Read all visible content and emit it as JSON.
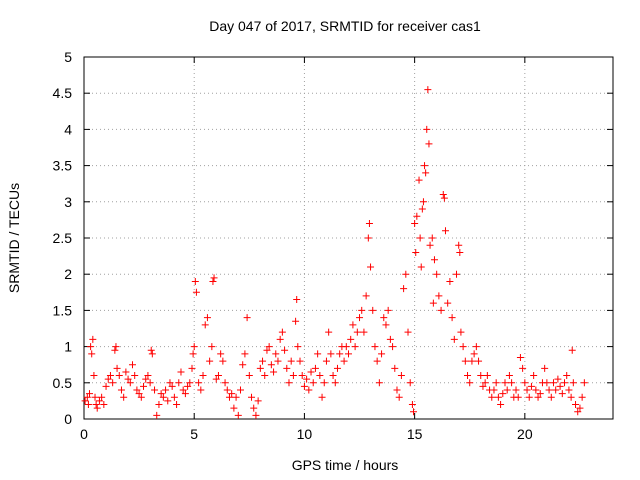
{
  "chart_data": {
    "type": "scatter",
    "title": "Day 047 of 2017, SRMTID for receiver cas1",
    "xlabel": "GPS time / hours",
    "ylabel": "SRMTID / TECUs",
    "xlim": [
      0,
      24
    ],
    "ylim": [
      0,
      5
    ],
    "grid": true,
    "marker": "+",
    "color": "#ff0000",
    "xticks": [
      0,
      5,
      10,
      15,
      20
    ],
    "xtick_labels": [
      "0",
      "5",
      "10",
      "15",
      "20"
    ],
    "yticks": [
      0,
      0.5,
      1,
      1.5,
      2,
      2.5,
      3,
      3.5,
      4,
      4.5,
      5
    ],
    "ytick_labels": [
      "0",
      "0.5",
      "1",
      "1.5",
      "2",
      "2.5",
      "3",
      "3.5",
      "4",
      "4.5",
      "5"
    ],
    "series": [
      {
        "name": "cas1",
        "points": [
          [
            0.05,
            0.25
          ],
          [
            0.15,
            0.3
          ],
          [
            0.2,
            0.2
          ],
          [
            0.25,
            0.35
          ],
          [
            0.3,
            1.0
          ],
          [
            0.35,
            0.9
          ],
          [
            0.4,
            1.1
          ],
          [
            0.45,
            0.6
          ],
          [
            0.5,
            0.3
          ],
          [
            0.55,
            0.2
          ],
          [
            0.6,
            0.15
          ],
          [
            0.7,
            0.25
          ],
          [
            0.8,
            0.3
          ],
          [
            0.9,
            0.2
          ],
          [
            1.0,
            0.45
          ],
          [
            1.1,
            0.55
          ],
          [
            1.2,
            0.6
          ],
          [
            1.3,
            0.5
          ],
          [
            1.4,
            0.95
          ],
          [
            1.45,
            1.0
          ],
          [
            1.5,
            0.7
          ],
          [
            1.6,
            0.6
          ],
          [
            1.7,
            0.4
          ],
          [
            1.8,
            0.3
          ],
          [
            1.9,
            0.65
          ],
          [
            2.0,
            0.55
          ],
          [
            2.1,
            0.5
          ],
          [
            2.2,
            0.75
          ],
          [
            2.3,
            0.6
          ],
          [
            2.4,
            0.4
          ],
          [
            2.5,
            0.35
          ],
          [
            2.6,
            0.3
          ],
          [
            2.7,
            0.45
          ],
          [
            2.8,
            0.55
          ],
          [
            2.9,
            0.6
          ],
          [
            3.0,
            0.5
          ],
          [
            3.05,
            0.95
          ],
          [
            3.1,
            0.9
          ],
          [
            3.2,
            0.4
          ],
          [
            3.3,
            0.05
          ],
          [
            3.4,
            0.2
          ],
          [
            3.5,
            0.35
          ],
          [
            3.6,
            0.3
          ],
          [
            3.7,
            0.4
          ],
          [
            3.8,
            0.25
          ],
          [
            3.9,
            0.5
          ],
          [
            4.0,
            0.45
          ],
          [
            4.1,
            0.3
          ],
          [
            4.2,
            0.2
          ],
          [
            4.3,
            0.5
          ],
          [
            4.4,
            0.65
          ],
          [
            4.5,
            0.4
          ],
          [
            4.6,
            0.35
          ],
          [
            4.7,
            0.45
          ],
          [
            4.8,
            0.5
          ],
          [
            4.9,
            0.7
          ],
          [
            4.95,
            0.9
          ],
          [
            5.0,
            1.0
          ],
          [
            5.05,
            1.9
          ],
          [
            5.1,
            1.75
          ],
          [
            5.2,
            0.5
          ],
          [
            5.3,
            0.4
          ],
          [
            5.4,
            0.6
          ],
          [
            5.5,
            1.3
          ],
          [
            5.6,
            1.4
          ],
          [
            5.7,
            0.8
          ],
          [
            5.8,
            1.0
          ],
          [
            5.85,
            1.9
          ],
          [
            5.9,
            1.95
          ],
          [
            6.0,
            0.55
          ],
          [
            6.1,
            0.6
          ],
          [
            6.2,
            0.9
          ],
          [
            6.3,
            0.8
          ],
          [
            6.4,
            0.5
          ],
          [
            6.5,
            0.4
          ],
          [
            6.6,
            0.3
          ],
          [
            6.7,
            0.35
          ],
          [
            6.8,
            0.15
          ],
          [
            6.9,
            0.3
          ],
          [
            7.0,
            0.05
          ],
          [
            7.1,
            0.4
          ],
          [
            7.2,
            0.75
          ],
          [
            7.3,
            0.9
          ],
          [
            7.4,
            1.4
          ],
          [
            7.5,
            0.6
          ],
          [
            7.6,
            0.3
          ],
          [
            7.7,
            0.15
          ],
          [
            7.8,
            0.05
          ],
          [
            7.9,
            0.25
          ],
          [
            8.0,
            0.7
          ],
          [
            8.1,
            0.8
          ],
          [
            8.2,
            0.6
          ],
          [
            8.3,
            0.95
          ],
          [
            8.4,
            1.0
          ],
          [
            8.5,
            0.75
          ],
          [
            8.6,
            0.65
          ],
          [
            8.7,
            0.9
          ],
          [
            8.8,
            0.8
          ],
          [
            8.9,
            1.1
          ],
          [
            9.0,
            1.2
          ],
          [
            9.1,
            0.95
          ],
          [
            9.2,
            0.7
          ],
          [
            9.3,
            0.5
          ],
          [
            9.4,
            0.8
          ],
          [
            9.5,
            0.6
          ],
          [
            9.6,
            1.35
          ],
          [
            9.65,
            1.65
          ],
          [
            9.7,
            1.0
          ],
          [
            9.8,
            0.8
          ],
          [
            9.9,
            0.6
          ],
          [
            10.0,
            0.45
          ],
          [
            10.1,
            0.55
          ],
          [
            10.2,
            0.4
          ],
          [
            10.3,
            0.65
          ],
          [
            10.4,
            0.5
          ],
          [
            10.5,
            0.7
          ],
          [
            10.6,
            0.9
          ],
          [
            10.7,
            0.6
          ],
          [
            10.8,
            0.3
          ],
          [
            10.9,
            0.5
          ],
          [
            11.0,
            0.8
          ],
          [
            11.1,
            1.2
          ],
          [
            11.2,
            0.9
          ],
          [
            11.3,
            0.6
          ],
          [
            11.4,
            0.5
          ],
          [
            11.5,
            0.7
          ],
          [
            11.6,
            0.9
          ],
          [
            11.7,
            1.0
          ],
          [
            11.8,
            0.8
          ],
          [
            11.9,
            1.0
          ],
          [
            12.0,
            0.9
          ],
          [
            12.1,
            1.1
          ],
          [
            12.2,
            1.3
          ],
          [
            12.3,
            1.0
          ],
          [
            12.4,
            1.2
          ],
          [
            12.5,
            1.4
          ],
          [
            12.6,
            1.5
          ],
          [
            12.7,
            1.2
          ],
          [
            12.8,
            1.7
          ],
          [
            12.9,
            2.5
          ],
          [
            12.95,
            2.7
          ],
          [
            13.0,
            2.1
          ],
          [
            13.1,
            1.5
          ],
          [
            13.2,
            1.0
          ],
          [
            13.3,
            0.8
          ],
          [
            13.4,
            0.5
          ],
          [
            13.5,
            0.9
          ],
          [
            13.6,
            1.4
          ],
          [
            13.7,
            1.3
          ],
          [
            13.8,
            1.5
          ],
          [
            13.9,
            1.1
          ],
          [
            14.0,
            1.0
          ],
          [
            14.1,
            0.7
          ],
          [
            14.2,
            0.4
          ],
          [
            14.3,
            0.3
          ],
          [
            14.4,
            0.6
          ],
          [
            14.5,
            1.8
          ],
          [
            14.6,
            2.0
          ],
          [
            14.7,
            1.2
          ],
          [
            14.8,
            0.5
          ],
          [
            14.9,
            0.2
          ],
          [
            14.95,
            0.1
          ],
          [
            15.0,
            2.7
          ],
          [
            15.05,
            2.3
          ],
          [
            15.1,
            2.8
          ],
          [
            15.2,
            3.3
          ],
          [
            15.25,
            2.5
          ],
          [
            15.3,
            2.1
          ],
          [
            15.35,
            2.9
          ],
          [
            15.4,
            3.0
          ],
          [
            15.45,
            3.5
          ],
          [
            15.5,
            3.4
          ],
          [
            15.55,
            4.0
          ],
          [
            15.6,
            4.55
          ],
          [
            15.65,
            3.8
          ],
          [
            15.7,
            2.4
          ],
          [
            15.8,
            2.5
          ],
          [
            15.85,
            1.6
          ],
          [
            15.9,
            2.2
          ],
          [
            16.0,
            2.0
          ],
          [
            16.1,
            1.7
          ],
          [
            16.2,
            1.5
          ],
          [
            16.3,
            3.1
          ],
          [
            16.35,
            3.05
          ],
          [
            16.4,
            2.6
          ],
          [
            16.5,
            1.6
          ],
          [
            16.6,
            1.9
          ],
          [
            16.7,
            1.4
          ],
          [
            16.8,
            1.1
          ],
          [
            16.9,
            2.0
          ],
          [
            17.0,
            2.4
          ],
          [
            17.05,
            2.3
          ],
          [
            17.1,
            1.2
          ],
          [
            17.2,
            1.0
          ],
          [
            17.3,
            0.8
          ],
          [
            17.4,
            0.6
          ],
          [
            17.5,
            0.5
          ],
          [
            17.6,
            0.8
          ],
          [
            17.7,
            0.9
          ],
          [
            17.8,
            1.0
          ],
          [
            17.9,
            0.8
          ],
          [
            18.0,
            0.6
          ],
          [
            18.1,
            0.45
          ],
          [
            18.2,
            0.5
          ],
          [
            18.3,
            0.6
          ],
          [
            18.4,
            0.4
          ],
          [
            18.5,
            0.3
          ],
          [
            18.6,
            0.4
          ],
          [
            18.7,
            0.5
          ],
          [
            18.8,
            0.3
          ],
          [
            18.9,
            0.2
          ],
          [
            19.0,
            0.35
          ],
          [
            19.1,
            0.5
          ],
          [
            19.2,
            0.4
          ],
          [
            19.3,
            0.6
          ],
          [
            19.4,
            0.5
          ],
          [
            19.5,
            0.3
          ],
          [
            19.6,
            0.4
          ],
          [
            19.7,
            0.3
          ],
          [
            19.8,
            0.85
          ],
          [
            19.9,
            0.7
          ],
          [
            20.0,
            0.5
          ],
          [
            20.1,
            0.4
          ],
          [
            20.2,
            0.3
          ],
          [
            20.3,
            0.45
          ],
          [
            20.4,
            0.6
          ],
          [
            20.5,
            0.4
          ],
          [
            20.6,
            0.3
          ],
          [
            20.7,
            0.35
          ],
          [
            20.8,
            0.5
          ],
          [
            20.9,
            0.7
          ],
          [
            21.0,
            0.5
          ],
          [
            21.1,
            0.4
          ],
          [
            21.2,
            0.3
          ],
          [
            21.3,
            0.5
          ],
          [
            21.4,
            0.4
          ],
          [
            21.5,
            0.55
          ],
          [
            21.6,
            0.45
          ],
          [
            21.7,
            0.35
          ],
          [
            21.8,
            0.5
          ],
          [
            21.9,
            0.6
          ],
          [
            22.0,
            0.4
          ],
          [
            22.1,
            0.3
          ],
          [
            22.15,
            0.95
          ],
          [
            22.2,
            0.5
          ],
          [
            22.3,
            0.2
          ],
          [
            22.4,
            0.1
          ],
          [
            22.5,
            0.15
          ],
          [
            22.6,
            0.3
          ],
          [
            22.7,
            0.5
          ]
        ]
      }
    ]
  }
}
